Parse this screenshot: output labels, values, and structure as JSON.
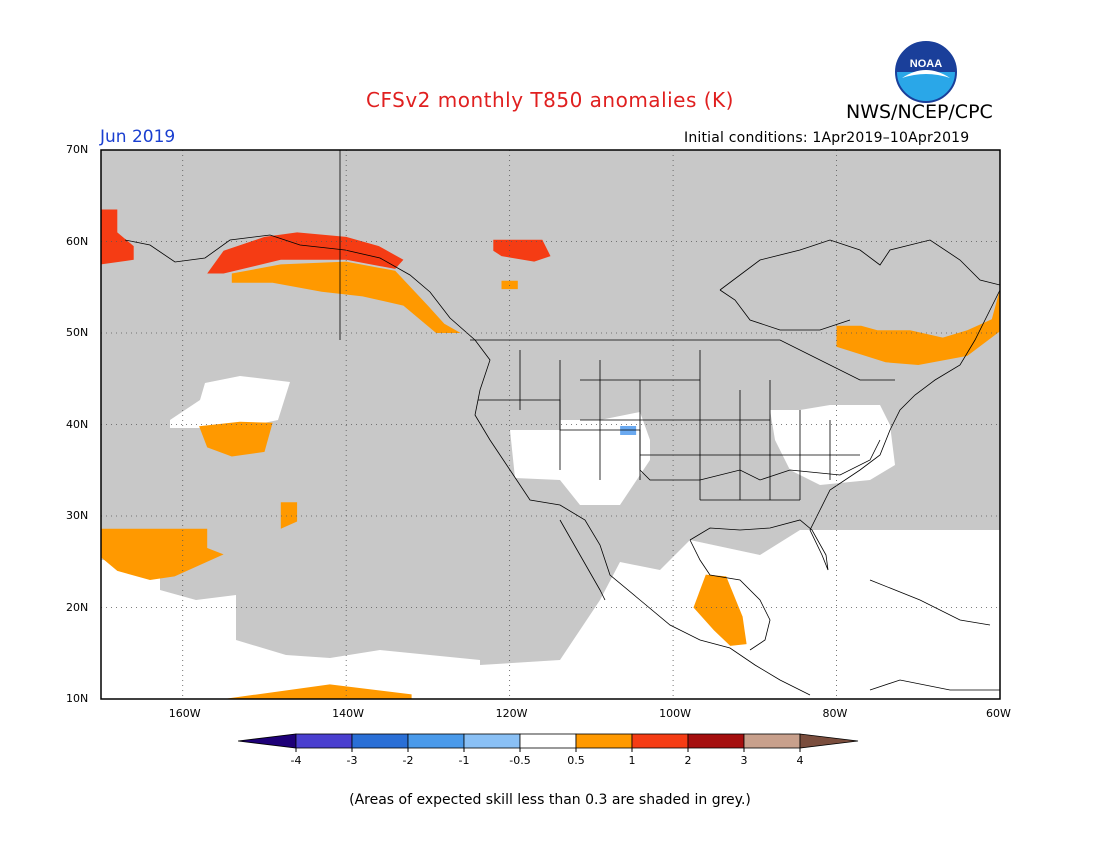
{
  "header": {
    "title": "CFSv2 monthly T850 anomalies (K)",
    "agency": "NWS/NCEP/CPC",
    "logo_text": "NOAA",
    "month": "Jun 2019",
    "initial_conditions": "Initial conditions: 1Apr2019–10Apr2019"
  },
  "map": {
    "lon_range": [
      -170,
      -60
    ],
    "lat_range": [
      10,
      70
    ],
    "lat_ticks": [
      {
        "value": 70,
        "label": "70N"
      },
      {
        "value": 60,
        "label": "60N"
      },
      {
        "value": 50,
        "label": "50N"
      },
      {
        "value": 40,
        "label": "40N"
      },
      {
        "value": 30,
        "label": "30N"
      },
      {
        "value": 20,
        "label": "20N"
      },
      {
        "value": 10,
        "label": "10N"
      }
    ],
    "lon_ticks": [
      {
        "value": -160,
        "label": "160W"
      },
      {
        "value": -140,
        "label": "140W"
      },
      {
        "value": -120,
        "label": "120W"
      },
      {
        "value": -100,
        "label": "100W"
      },
      {
        "value": -80,
        "label": "80W"
      },
      {
        "value": -60,
        "label": "60W"
      }
    ],
    "grid": true,
    "skill_mask_color": "#c8c8c8",
    "anomaly_regions": [
      {
        "name": "Gulf of Alaska / coastal Alaska",
        "anomaly": "1 to 2",
        "color": "#f53c14",
        "points": [
          [
            -157,
            56.5
          ],
          [
            -155,
            59
          ],
          [
            -150,
            60.5
          ],
          [
            -146,
            61
          ],
          [
            -140,
            60.5
          ],
          [
            -136,
            59.5
          ],
          [
            -133,
            58
          ],
          [
            -134,
            57
          ],
          [
            -140,
            58
          ],
          [
            -148,
            58
          ],
          [
            -155,
            56.5
          ]
        ]
      },
      {
        "name": "Gulf of Alaska / BC coast",
        "anomaly": "0.5 to 1",
        "color": "#ff9900",
        "points": [
          [
            -154,
            56.5
          ],
          [
            -148,
            57.5
          ],
          [
            -140,
            57.8
          ],
          [
            -134,
            56.8
          ],
          [
            -130,
            53
          ],
          [
            -128,
            51
          ],
          [
            -126,
            50
          ],
          [
            -129,
            50
          ],
          [
            -133,
            53
          ],
          [
            -138,
            54
          ],
          [
            -143,
            54.5
          ],
          [
            -149,
            55.5
          ],
          [
            -154,
            55.5
          ]
        ]
      },
      {
        "name": "Yukon / NWT",
        "anomaly": "1 to 2",
        "color": "#f53c14",
        "points": [
          [
            -122,
            60.2
          ],
          [
            -116,
            60.2
          ],
          [
            -115,
            58.4
          ],
          [
            -117,
            57.8
          ],
          [
            -121,
            58.4
          ],
          [
            -122,
            59
          ]
        ]
      },
      {
        "name": "Northern Alberta",
        "anomaly": "0.5 to 1",
        "color": "#ff9900",
        "points": [
          [
            -121,
            55.7
          ],
          [
            -119,
            55.7
          ],
          [
            -119,
            54.8
          ],
          [
            -121,
            54.8
          ]
        ]
      },
      {
        "name": "Bering Sea",
        "anomaly": "1 to 2",
        "color": "#f53c14",
        "points": [
          [
            -170,
            63.5
          ],
          [
            -168,
            63.5
          ],
          [
            -168,
            61
          ],
          [
            -166,
            59.5
          ],
          [
            -166,
            58
          ],
          [
            -170,
            57.5
          ]
        ]
      },
      {
        "name": "Eastern Canada",
        "anomaly": "0.5 to 1",
        "color": "#ff9900",
        "points": [
          [
            -80,
            50.8
          ],
          [
            -77,
            50.8
          ],
          [
            -75,
            50.3
          ],
          [
            -71,
            50.3
          ],
          [
            -67,
            49.5
          ],
          [
            -64,
            50.3
          ],
          [
            -61,
            51.5
          ],
          [
            -60,
            54.8
          ],
          [
            -60,
            50.2
          ],
          [
            -64,
            47.5
          ],
          [
            -70,
            46.5
          ],
          [
            -74,
            46.8
          ],
          [
            -80,
            48.5
          ]
        ]
      },
      {
        "name": "North Pacific 40N",
        "anomaly": "0.5 to 1",
        "color": "#ff9900",
        "points": [
          [
            -158,
            39.8
          ],
          [
            -153,
            40.3
          ],
          [
            -149,
            40.2
          ],
          [
            -150,
            37
          ],
          [
            -154,
            36.5
          ],
          [
            -157,
            37.5
          ]
        ]
      },
      {
        "name": "North Pacific 31N",
        "anomaly": "0.5 to 1",
        "color": "#ff9900",
        "points": [
          [
            -148,
            31.5
          ],
          [
            -146,
            31.5
          ],
          [
            -146,
            29.4
          ],
          [
            -148,
            28.6
          ]
        ]
      },
      {
        "name": "Subtropical Pacific",
        "anomaly": "0.5 to 1",
        "color": "#ff9900",
        "points": [
          [
            -170,
            28.6
          ],
          [
            -157,
            28.6
          ],
          [
            -157,
            26.5
          ],
          [
            -155,
            25.8
          ],
          [
            -161,
            23.4
          ],
          [
            -164,
            23
          ],
          [
            -168,
            24
          ],
          [
            -170,
            25.5
          ]
        ]
      },
      {
        "name": "Equatorial Pacific",
        "anomaly": "0.5 to 1",
        "color": "#ff9900",
        "points": [
          [
            -155,
            10
          ],
          [
            -142,
            11.6
          ],
          [
            -132,
            10.5
          ],
          [
            -132,
            10
          ]
        ]
      },
      {
        "name": "Southern Mexico",
        "anomaly": "0.5 to 1",
        "color": "#ff9900",
        "points": [
          [
            -96,
            23.6
          ],
          [
            -93.5,
            23.4
          ],
          [
            -91.5,
            19
          ],
          [
            -91,
            16
          ],
          [
            -93,
            15.8
          ],
          [
            -95,
            17.5
          ],
          [
            -97.5,
            20
          ]
        ]
      }
    ],
    "below_threshold_regions": [
      {
        "name": "US Southwest",
        "color": "#ffffff",
        "points": [
          [
            -120,
            39.5
          ],
          [
            -115,
            39.5
          ],
          [
            -110,
            39
          ],
          [
            -104,
            39.5
          ],
          [
            -102,
            37
          ],
          [
            -105,
            35.5
          ],
          [
            -106,
            32
          ],
          [
            -108,
            31
          ],
          [
            -111,
            31.5
          ],
          [
            -113,
            33
          ],
          [
            -116,
            34
          ],
          [
            -119,
            35.5
          ]
        ]
      },
      {
        "name": "US East",
        "color": "#ffffff",
        "points": [
          [
            -84,
            42
          ],
          [
            -79,
            42.8
          ],
          [
            -73,
            42.8
          ],
          [
            -72,
            41.5
          ],
          [
            -74,
            38
          ],
          [
            -75,
            36.5
          ],
          [
            -78,
            34
          ],
          [
            -83,
            35.5
          ],
          [
            -86,
            38
          ]
        ]
      },
      {
        "name": "North Pacific white",
        "color": "#ffffff",
        "points": [
          [
            -162,
            39.8
          ],
          [
            -155,
            42.5
          ],
          [
            -152,
            44.5
          ],
          [
            -144,
            45
          ],
          [
            -143,
            43
          ],
          [
            -149,
            40.3
          ],
          [
            -157,
            39.5
          ]
        ]
      }
    ],
    "cold_pixel": {
      "lon": -105.5,
      "lat": 39.4,
      "color": "#6aa9f0"
    }
  },
  "colorbar": {
    "thresholds": [
      "-4",
      "-3",
      "-2",
      "-1",
      "-0.5",
      "0.5",
      "1",
      "2",
      "3",
      "4"
    ],
    "colors": [
      "#1e0078",
      "#4a3fcf",
      "#2a6fd6",
      "#4a9aea",
      "#8ac0f5",
      "#ffffff",
      "#ff9900",
      "#f53c14",
      "#a50f0f",
      "#c8a08c",
      "#7a4d3d"
    ]
  },
  "footnote": "(Areas of expected skill less than 0.3 are shaded in grey.)"
}
